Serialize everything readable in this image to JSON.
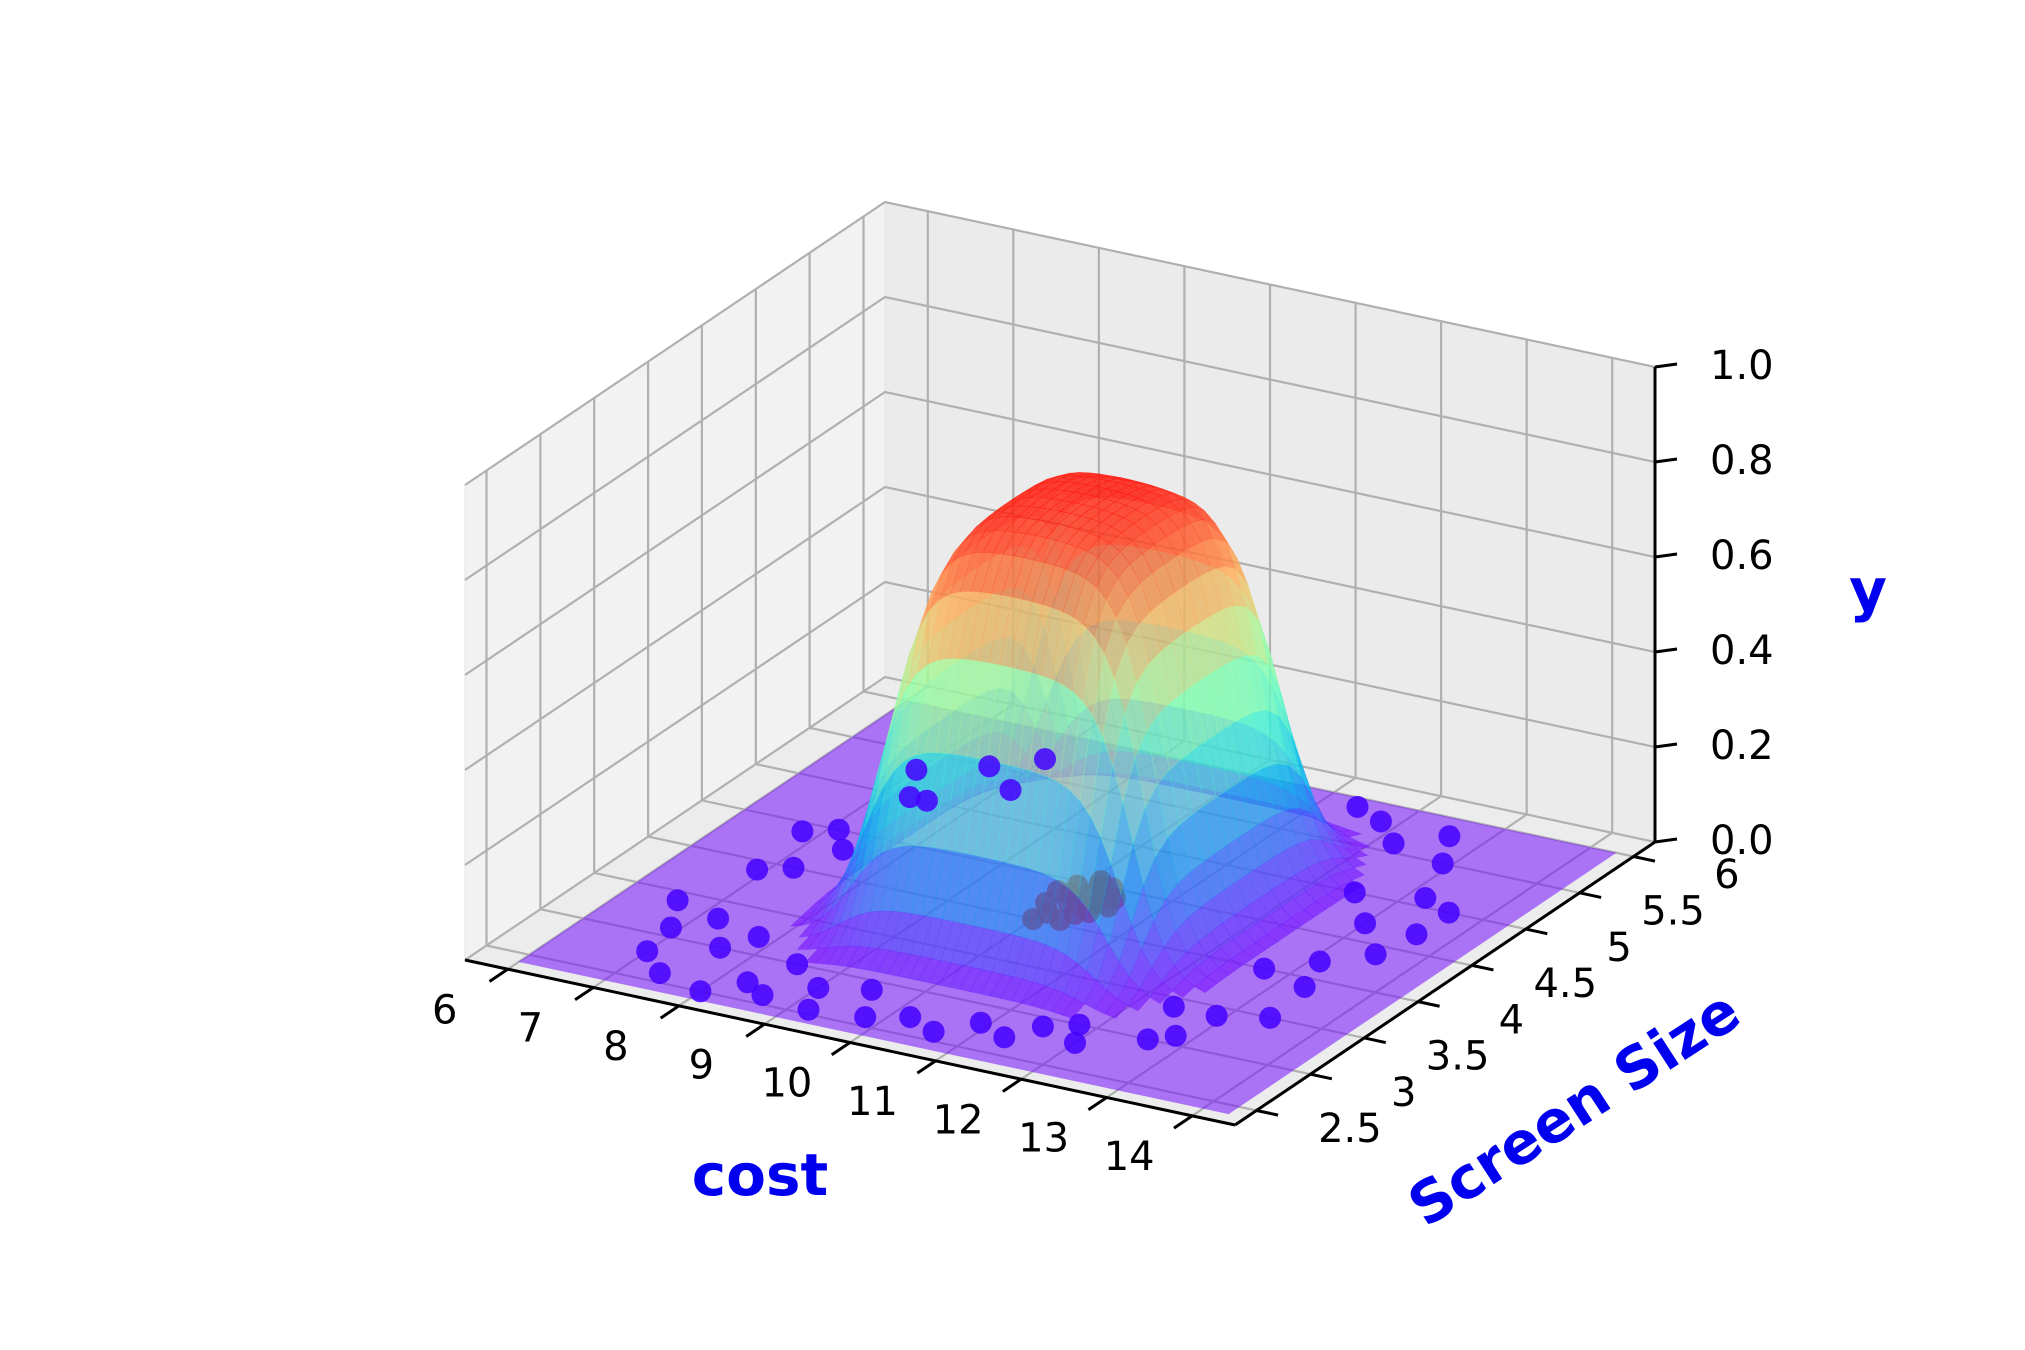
{
  "chart_data": {
    "type": "3d-surface-scatter",
    "colormap": "rainbow",
    "grid": true,
    "axis_color": "#0000ee",
    "axes": {
      "x": {
        "label": "cost",
        "range": [
          5.5,
          14.5
        ],
        "ticks": [
          6,
          7,
          8,
          9,
          10,
          11,
          12,
          13,
          14
        ],
        "tick_labels": [
          "6",
          "7",
          "8",
          "9",
          "10",
          "11",
          "12",
          "13",
          "14"
        ]
      },
      "y": {
        "label": "Screen Size",
        "range": [
          2.3,
          6.2
        ],
        "ticks": [
          2.5,
          3,
          3.5,
          4,
          4.5,
          5,
          5.5,
          6
        ],
        "tick_labels": [
          "2.5",
          "3",
          "3.5",
          "4",
          "4.5",
          "5",
          "5.5",
          "6"
        ]
      },
      "z": {
        "label": "y",
        "range": [
          0,
          1
        ],
        "ticks": [
          0.0,
          0.2,
          0.4,
          0.6,
          0.8,
          1.0
        ],
        "tick_labels": [
          "0.0",
          "0.2",
          "0.4",
          "0.6",
          "0.8",
          "1.0"
        ]
      }
    },
    "surface": {
      "shape": "plateau",
      "center": [
        10.2,
        4.3
      ],
      "half_width_cost": 1.5,
      "half_width_screen": 0.85,
      "peak": 0.85,
      "alpha": 0.6
    },
    "scatter": {
      "class_high": {
        "color": "#c00030",
        "points": [
          [
            9.9,
            4.2
          ],
          [
            10.0,
            4.35
          ],
          [
            10.1,
            4.25
          ],
          [
            10.2,
            4.4
          ],
          [
            10.3,
            4.15
          ],
          [
            10.05,
            4.1
          ],
          [
            10.15,
            4.5
          ],
          [
            10.35,
            4.3
          ],
          [
            9.95,
            4.45
          ],
          [
            10.25,
            4.05
          ],
          [
            10.45,
            4.4
          ],
          [
            10.1,
            4.55
          ],
          [
            9.85,
            4.35
          ],
          [
            10.4,
            4.2
          ],
          [
            10.2,
            4.25
          ],
          [
            10.0,
            4.0
          ],
          [
            10.3,
            4.5
          ],
          [
            10.5,
            4.3
          ]
        ]
      },
      "class_low": {
        "color": "#4400ff",
        "points": [
          [
            7.0,
            2.8
          ],
          [
            7.4,
            2.6
          ],
          [
            8.0,
            2.5
          ],
          [
            8.6,
            2.6
          ],
          [
            9.2,
            2.55
          ],
          [
            9.8,
            2.6
          ],
          [
            10.6,
            2.6
          ],
          [
            11.3,
            2.7
          ],
          [
            12.0,
            2.8
          ],
          [
            12.6,
            3.0
          ],
          [
            7.2,
            3.3
          ],
          [
            7.6,
            3.0
          ],
          [
            8.3,
            2.7
          ],
          [
            9.0,
            2.8
          ],
          [
            10.2,
            2.7
          ],
          [
            11.8,
            3.0
          ],
          [
            6.6,
            3.4
          ],
          [
            6.9,
            3.9
          ],
          [
            7.1,
            4.5
          ],
          [
            7.3,
            5.0
          ],
          [
            7.6,
            5.5
          ],
          [
            8.0,
            5.7
          ],
          [
            6.8,
            4.4
          ],
          [
            7.0,
            5.3
          ],
          [
            7.5,
            5.0
          ],
          [
            7.2,
            4.0
          ],
          [
            6.9,
            3.1
          ],
          [
            12.9,
            3.4
          ],
          [
            13.3,
            3.9
          ],
          [
            13.5,
            4.4
          ],
          [
            13.2,
            5.1
          ],
          [
            12.9,
            5.5
          ],
          [
            12.6,
            5.8
          ],
          [
            13.0,
            4.7
          ],
          [
            13.4,
            3.5
          ],
          [
            12.7,
            4.0
          ],
          [
            13.1,
            4.2
          ],
          [
            12.5,
            5.0
          ],
          [
            13.6,
            5.0
          ],
          [
            11.8,
            5.8
          ],
          [
            11.4,
            5.9
          ],
          [
            12.2,
            5.6
          ],
          [
            12.4,
            3.4
          ],
          [
            12.8,
            3.1
          ],
          [
            7.8,
            3.2
          ],
          [
            8.5,
            3.0
          ],
          [
            10.9,
            2.8
          ],
          [
            11.5,
            2.9
          ],
          [
            9.5,
            2.9
          ],
          [
            8.1,
            5.3
          ],
          [
            7.4,
            4.3
          ],
          [
            13.6,
            4.7
          ]
        ]
      }
    }
  }
}
